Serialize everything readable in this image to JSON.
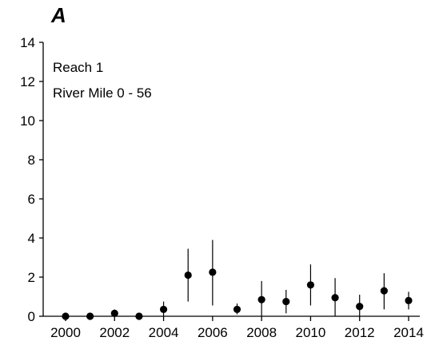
{
  "chart_data": {
    "type": "scatter",
    "panel_label": "A",
    "title": "",
    "xlabel": "",
    "ylabel": "",
    "annotations": [
      "Reach 1",
      "River Mile 0 - 56"
    ],
    "xlim": [
      2000,
      2014
    ],
    "ylim": [
      0,
      14
    ],
    "x_ticks": [
      2000,
      2002,
      2004,
      2006,
      2008,
      2010,
      2012,
      2014
    ],
    "y_ticks": [
      0,
      2,
      4,
      6,
      8,
      10,
      12,
      14
    ],
    "grid": false,
    "legend": "none",
    "marker_color": "#000000",
    "points": [
      {
        "x": 2000,
        "y": 0.0,
        "lo": 0.0,
        "hi": 0.0
      },
      {
        "x": 2001,
        "y": 0.0,
        "lo": 0.0,
        "hi": 0.0
      },
      {
        "x": 2002,
        "y": 0.15,
        "lo": 0.0,
        "hi": 0.35
      },
      {
        "x": 2003,
        "y": 0.0,
        "lo": 0.0,
        "hi": 0.0
      },
      {
        "x": 2004,
        "y": 0.35,
        "lo": 0.0,
        "hi": 0.75
      },
      {
        "x": 2005,
        "y": 2.1,
        "lo": 0.75,
        "hi": 3.45
      },
      {
        "x": 2006,
        "y": 2.25,
        "lo": 0.55,
        "hi": 3.9
      },
      {
        "x": 2007,
        "y": 0.35,
        "lo": 0.1,
        "hi": 0.65
      },
      {
        "x": 2008,
        "y": 0.85,
        "lo": 0.0,
        "hi": 1.8
      },
      {
        "x": 2009,
        "y": 0.75,
        "lo": 0.15,
        "hi": 1.35
      },
      {
        "x": 2010,
        "y": 1.6,
        "lo": 0.55,
        "hi": 2.65
      },
      {
        "x": 2011,
        "y": 0.95,
        "lo": 0.0,
        "hi": 1.95
      },
      {
        "x": 2012,
        "y": 0.5,
        "lo": 0.0,
        "hi": 1.1
      },
      {
        "x": 2013,
        "y": 1.3,
        "lo": 0.35,
        "hi": 2.2
      },
      {
        "x": 2014,
        "y": 0.8,
        "lo": 0.35,
        "hi": 1.25
      }
    ]
  }
}
